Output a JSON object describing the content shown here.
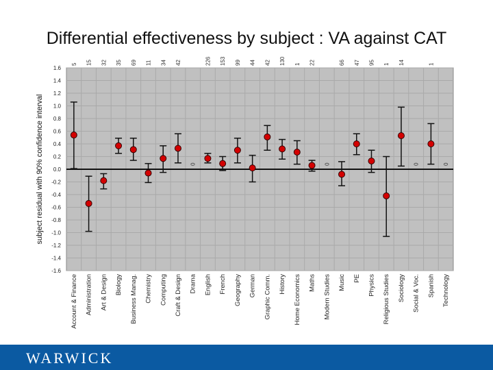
{
  "title": "Differential effectiveness by subject : VA against CAT",
  "footer": {
    "logo_text": "WARWICK",
    "color": "#0b5aa2"
  },
  "chart_data": {
    "type": "scatter",
    "title": "Differential effectiveness by subject : VA against CAT",
    "ylabel": "subject residual with 90% confidence interval",
    "xlabel": "",
    "ylim": [
      -1.6,
      1.6
    ],
    "yticks": [
      "1.6",
      "1.4",
      "1.2",
      "1.0",
      "0.8",
      "0.6",
      "0.4",
      "0.2",
      "0.0",
      "-0.2",
      "-0.4",
      "-0.6",
      "-0.8",
      "-1.0",
      "-1.2",
      "-1.4",
      "-1.6"
    ],
    "grid": true,
    "marker_color": "#d40000",
    "background_color": "#c0c0c0",
    "categories": [
      "Account & Finance",
      "Administration",
      "Art & Design",
      "Biology",
      "Business Manag.",
      "Chemistry",
      "Computing",
      "Craft & Design",
      "Drama",
      "English",
      "French",
      "Geography",
      "German",
      "Graphic Comm.",
      "History",
      "Home Economics",
      "Maths",
      "Modern Studies",
      "Music",
      "PE",
      "Physics",
      "Religious Studies",
      "Sociology",
      "Social & Voc.",
      "Spanish",
      "Technology"
    ],
    "counts": [
      "5",
      "15",
      "32",
      "35",
      "69",
      "11",
      "34",
      "42",
      "",
      "226",
      "153",
      "99",
      "44",
      "42",
      "130",
      "1",
      "22",
      "",
      "66",
      "47",
      "95",
      "1",
      "14",
      "",
      "1",
      ""
    ],
    "values": [
      0.54,
      -0.54,
      -0.18,
      0.37,
      0.31,
      -0.06,
      0.17,
      0.33,
      null,
      0.17,
      0.09,
      0.3,
      0.02,
      0.51,
      0.32,
      0.27,
      0.06,
      null,
      -0.08,
      0.4,
      0.13,
      -0.42,
      0.53,
      null,
      0.4,
      null
    ],
    "upper": [
      1.06,
      -0.11,
      -0.07,
      0.49,
      0.49,
      0.09,
      0.37,
      0.56,
      null,
      0.25,
      0.2,
      0.49,
      0.22,
      0.69,
      0.47,
      0.45,
      0.14,
      null,
      0.12,
      0.56,
      0.3,
      0.2,
      0.98,
      null,
      0.72,
      null
    ],
    "lower": [
      0.01,
      -0.98,
      -0.31,
      0.25,
      0.14,
      -0.21,
      -0.05,
      0.1,
      null,
      0.1,
      -0.02,
      0.1,
      -0.2,
      0.3,
      0.16,
      0.08,
      -0.03,
      null,
      -0.26,
      0.23,
      -0.05,
      -1.06,
      0.05,
      null,
      0.08,
      null
    ],
    "no_data_marker": "0"
  }
}
